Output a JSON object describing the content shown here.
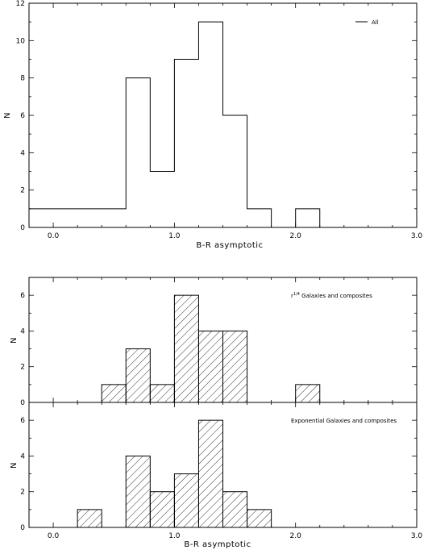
{
  "chart_data": [
    {
      "type": "bar",
      "panel": "top",
      "style": "step outline",
      "xlabel": "B-R asymptotic",
      "ylabel": "N",
      "xlim": [
        -0.2,
        3.0
      ],
      "ylim": [
        0,
        12
      ],
      "xticks": [
        "0.0",
        "1.0",
        "2.0",
        "3.0"
      ],
      "yticks": [
        "0",
        "2",
        "4",
        "6",
        "8",
        "10",
        "12"
      ],
      "legend": {
        "label": "All",
        "placement": "top-right"
      },
      "bins": [
        {
          "x0": -0.2,
          "x1": 0.0,
          "n": 1
        },
        {
          "x0": 0.0,
          "x1": 0.2,
          "n": 1
        },
        {
          "x0": 0.2,
          "x1": 0.4,
          "n": 1
        },
        {
          "x0": 0.4,
          "x1": 0.6,
          "n": 1
        },
        {
          "x0": 0.6,
          "x1": 0.8,
          "n": 8
        },
        {
          "x0": 0.8,
          "x1": 1.0,
          "n": 3
        },
        {
          "x0": 1.0,
          "x1": 1.2,
          "n": 9
        },
        {
          "x0": 1.2,
          "x1": 1.4,
          "n": 11
        },
        {
          "x0": 1.4,
          "x1": 1.6,
          "n": 6
        },
        {
          "x0": 1.6,
          "x1": 1.8,
          "n": 1
        },
        {
          "x0": 1.8,
          "x1": 2.0,
          "n": 0
        },
        {
          "x0": 2.0,
          "x1": 2.2,
          "n": 1
        }
      ]
    },
    {
      "type": "bar",
      "panel": "middle",
      "style": "hatched",
      "ylabel": "N",
      "xlim": [
        -0.2,
        3.0
      ],
      "ylim": [
        0,
        7
      ],
      "yticks": [
        "0",
        "2",
        "4",
        "6"
      ],
      "annotation_prefix": "r",
      "annotation_sup": "1/4",
      "annotation_rest": " Galaxies and composites",
      "bins": [
        {
          "x0": 0.4,
          "x1": 0.6,
          "n": 1
        },
        {
          "x0": 0.6,
          "x1": 0.8,
          "n": 3
        },
        {
          "x0": 0.8,
          "x1": 1.0,
          "n": 1
        },
        {
          "x0": 1.0,
          "x1": 1.2,
          "n": 6
        },
        {
          "x0": 1.2,
          "x1": 1.4,
          "n": 4
        },
        {
          "x0": 1.4,
          "x1": 1.6,
          "n": 4
        },
        {
          "x0": 2.0,
          "x1": 2.2,
          "n": 1
        }
      ]
    },
    {
      "type": "bar",
      "panel": "bottom",
      "style": "hatched",
      "xlabel": "B-R asymptotic",
      "ylabel": "N",
      "xlim": [
        -0.2,
        3.0
      ],
      "ylim": [
        0,
        7
      ],
      "xticks": [
        "0.0",
        "1.0",
        "2.0",
        "3.0"
      ],
      "yticks": [
        "0",
        "2",
        "4",
        "6"
      ],
      "annotation": "Exponential Galaxies and composites",
      "bins": [
        {
          "x0": 0.2,
          "x1": 0.4,
          "n": 1
        },
        {
          "x0": 0.6,
          "x1": 0.8,
          "n": 4
        },
        {
          "x0": 0.8,
          "x1": 1.0,
          "n": 2
        },
        {
          "x0": 1.0,
          "x1": 1.2,
          "n": 3
        },
        {
          "x0": 1.2,
          "x1": 1.4,
          "n": 6
        },
        {
          "x0": 1.4,
          "x1": 1.6,
          "n": 2
        },
        {
          "x0": 1.6,
          "x1": 1.8,
          "n": 1
        }
      ]
    }
  ]
}
